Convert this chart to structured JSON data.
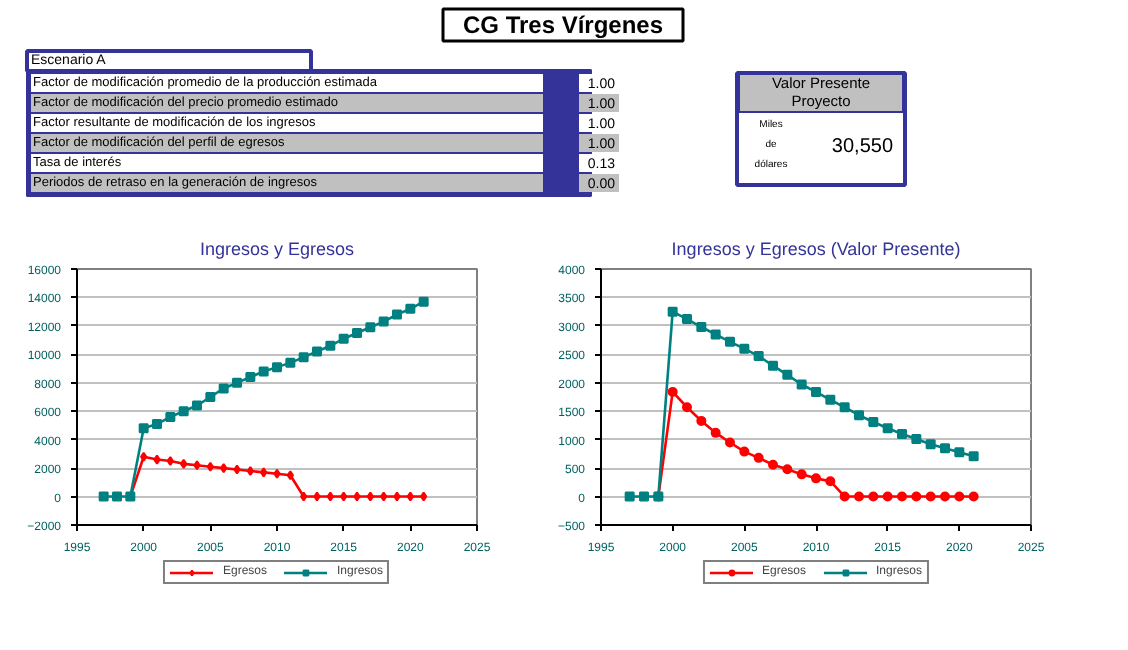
{
  "chart_data": [
    {
      "type": "other",
      "title": "CG Tres Vírgenes",
      "subtitle": "Escenario A",
      "categories": [
        "Factor de modificación promedio de la producción estimada",
        "Factor de modificación del precio promedio estimado",
        "Factor resultante de modificación de los ingresos",
        "Factor de modificación del perfil de egresos",
        "Tasa de interés",
        "Periodos de retraso en la generación de ingresos"
      ],
      "value_labels": [
        "1.00",
        "1.00",
        "1.00",
        "1.00",
        "0.13",
        "0.00"
      ]
    },
    {
      "type": "other",
      "title": "Valor Presente Proyecto",
      "categories": [
        "Miles de dólares"
      ],
      "value_labels": [
        "30,550"
      ]
    },
    {
      "type": "line",
      "title": "Ingresos y Egresos",
      "xlim": [
        1995,
        2025
      ],
      "xticks": [
        1995,
        2000,
        2005,
        2010,
        2015,
        2020,
        2025
      ],
      "ylim": [
        -2000,
        16000
      ],
      "yticks": [
        -2000,
        0,
        2000,
        4000,
        6000,
        8000,
        10000,
        12000,
        14000,
        16000
      ],
      "grid": "y",
      "legend": "bottom",
      "series": [
        {
          "name": "Egresos",
          "color": "#ff0000",
          "marker": "diamond",
          "x": [
            1999,
            2000,
            2001,
            2002,
            2003,
            2004,
            2005,
            2006,
            2007,
            2008,
            2009,
            2010,
            2011,
            2012,
            2013,
            2014,
            2015,
            2016,
            2017,
            2018,
            2019,
            2020,
            2021
          ],
          "values": [
            0,
            2800,
            2600,
            2500,
            2300,
            2200,
            2100,
            2000,
            1900,
            1800,
            1700,
            1600,
            1500,
            0,
            0,
            0,
            0,
            0,
            0,
            0,
            0,
            0,
            0
          ]
        },
        {
          "name": "Ingresos",
          "color": "#008080",
          "marker": "square",
          "x": [
            1997,
            1998,
            1999,
            2000,
            2001,
            2002,
            2003,
            2004,
            2005,
            2006,
            2007,
            2008,
            2009,
            2010,
            2011,
            2012,
            2013,
            2014,
            2015,
            2016,
            2017,
            2018,
            2019,
            2020,
            2021
          ],
          "values": [
            0,
            0,
            0,
            4800,
            5100,
            5600,
            6000,
            6400,
            7000,
            7600,
            8000,
            8400,
            8800,
            9100,
            9400,
            9800,
            10200,
            10600,
            11100,
            11500,
            11900,
            12300,
            12800,
            13200,
            13700
          ]
        }
      ]
    },
    {
      "type": "line",
      "title": "Ingresos y Egresos (Valor Presente)",
      "xlim": [
        1995,
        2025
      ],
      "xticks": [
        1995,
        2000,
        2005,
        2010,
        2015,
        2020,
        2025
      ],
      "ylim": [
        -500,
        4000
      ],
      "yticks": [
        -500,
        0,
        500,
        1000,
        1500,
        2000,
        2500,
        3000,
        3500,
        4000
      ],
      "grid": "y",
      "legend": "bottom",
      "series": [
        {
          "name": "Egresos",
          "color": "#ff0000",
          "marker": "circle",
          "x": [
            1999,
            2000,
            2001,
            2002,
            2003,
            2004,
            2005,
            2006,
            2007,
            2008,
            2009,
            2010,
            2011,
            2012,
            2013,
            2014,
            2015,
            2016,
            2017,
            2018,
            2019,
            2020,
            2021
          ],
          "values": [
            0,
            1840,
            1570,
            1330,
            1120,
            950,
            790,
            680,
            560,
            480,
            390,
            320,
            270,
            0,
            0,
            0,
            0,
            0,
            0,
            0,
            0,
            0,
            0
          ]
        },
        {
          "name": "Ingresos",
          "color": "#008080",
          "marker": "square",
          "x": [
            1997,
            1998,
            1999,
            2000,
            2001,
            2002,
            2003,
            2004,
            2005,
            2006,
            2007,
            2008,
            2009,
            2010,
            2011,
            2012,
            2013,
            2014,
            2015,
            2016,
            2017,
            2018,
            2019,
            2020,
            2021
          ],
          "values": [
            0,
            0,
            0,
            3250,
            3120,
            2980,
            2850,
            2720,
            2600,
            2470,
            2300,
            2140,
            1970,
            1840,
            1700,
            1570,
            1430,
            1310,
            1200,
            1100,
            1010,
            920,
            850,
            780,
            710
          ]
        }
      ]
    }
  ]
}
